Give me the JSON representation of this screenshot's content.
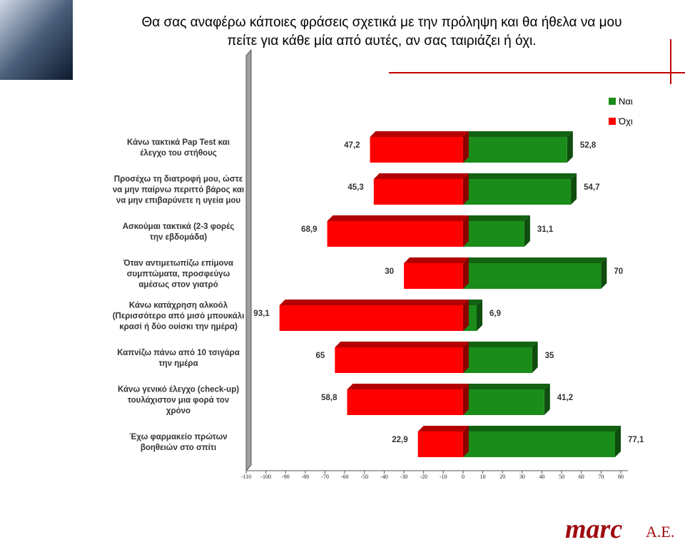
{
  "header": {
    "title_lines": [
      "Θα σας αναφέρω κάποιες φράσεις σχετικά με την πρόληψη και θα ήθελα να μου",
      "πείτε για κάθε μία από αυτές, αν σας ταιριάζει ή όχι."
    ]
  },
  "chart_data": {
    "type": "diverging-bar",
    "categories": [
      "Κάνω τακτικά Pap Test και\nέλεγχο του στήθους",
      "Προσέχω τη διατροφή μου, ώστε\nνα μην παίρνω περιττό βάρος και\nνα μην επιβαρύνετε η υγεία μου",
      "Ασκούμαι τακτικά (2-3 φορές\nτην εβδομάδα)",
      "Όταν αντιμετωπίζω επίμονα\nσυμπτώματα, προσφεύγω\nαμέσως στον γιατρό",
      "Κάνω κατάχρηση αλκοόλ\n(Περισσότερο από μισό μπουκάλι\nκρασί ή δύο ουίσκι την ημέρα)",
      "Καπνίζω πάνω από 10 τσιγάρα\nτην ημέρα",
      "Κάνω γενικό έλεγχο (check-up)\nτουλάχιστον μια φορά τον\nχρόνο",
      "Έχω φαρμακείο πρώτων\nβοηθειών στο σπίτι"
    ],
    "series": [
      {
        "name": "Ναι",
        "color": "#1a8c1a",
        "values": [
          52.8,
          54.7,
          31.1,
          70,
          6.9,
          35,
          41.2,
          77.1
        ],
        "value_labels": [
          "52,8",
          "54,7",
          "31,1",
          "70",
          "6,9",
          "35",
          "41,2",
          "77,1"
        ]
      },
      {
        "name": "Όχι",
        "color": "#ff0000",
        "values": [
          -47.2,
          -45.3,
          -68.9,
          -30,
          -93.1,
          -65,
          -58.8,
          -22.9
        ],
        "value_labels": [
          "47,2",
          "45,3",
          "68,9",
          "30",
          "93,1",
          "65",
          "58,8",
          "22,9"
        ]
      }
    ],
    "xlim": [
      -110,
      80
    ],
    "xticks": [
      -110,
      -100,
      -90,
      -80,
      -70,
      -60,
      -50,
      -40,
      -30,
      -20,
      -10,
      0,
      10,
      20,
      30,
      40,
      50,
      60,
      70,
      80
    ],
    "legend": "top-right"
  },
  "footer": {
    "brand": "marc",
    "suffix": "A.E."
  }
}
